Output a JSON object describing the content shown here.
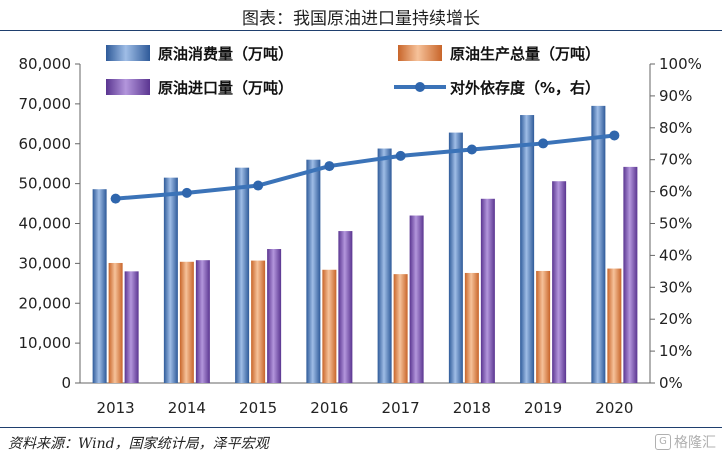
{
  "page": {
    "title": "图表：我国原油进口量持续增长",
    "source": "资料来源：Wind，国家统计局，泽平宏观",
    "watermark": "格隆汇"
  },
  "chart_data": {
    "type": "bar",
    "categories": [
      "2013",
      "2014",
      "2015",
      "2016",
      "2017",
      "2018",
      "2019",
      "2020"
    ],
    "series": [
      {
        "name": "原油消费量（万吨）",
        "kind": "bar",
        "axis": "left",
        "color": "#4a78b8",
        "values": [
          48600,
          51500,
          54000,
          56000,
          58800,
          62800,
          67200,
          69500
        ]
      },
      {
        "name": "原油生产总量（万吨）",
        "kind": "bar",
        "axis": "left",
        "color": "#e48a4a",
        "values": [
          30100,
          30400,
          30700,
          28400,
          27300,
          27600,
          28100,
          28700
        ]
      },
      {
        "name": "原油进口量（万吨）",
        "kind": "bar",
        "axis": "left",
        "color": "#7a50b0",
        "values": [
          28000,
          30800,
          33600,
          38100,
          42000,
          46200,
          50600,
          54200
        ]
      },
      {
        "name": "对外依存度（%，右）",
        "kind": "line",
        "axis": "right",
        "color": "#3b73b8",
        "values": [
          57.8,
          59.6,
          61.9,
          68.0,
          71.2,
          73.2,
          75.1,
          77.6
        ]
      }
    ],
    "y_left": {
      "lim": [
        0,
        80000
      ],
      "ticks": [
        "0",
        "10,000",
        "20,000",
        "30,000",
        "40,000",
        "50,000",
        "60,000",
        "70,000",
        "80,000"
      ]
    },
    "y_right": {
      "lim": [
        0,
        100
      ],
      "ticks": [
        "0%",
        "10%",
        "20%",
        "30%",
        "40%",
        "50%",
        "60%",
        "70%",
        "80%",
        "90%",
        "100%"
      ]
    },
    "grid": false,
    "legend_position": "top"
  }
}
